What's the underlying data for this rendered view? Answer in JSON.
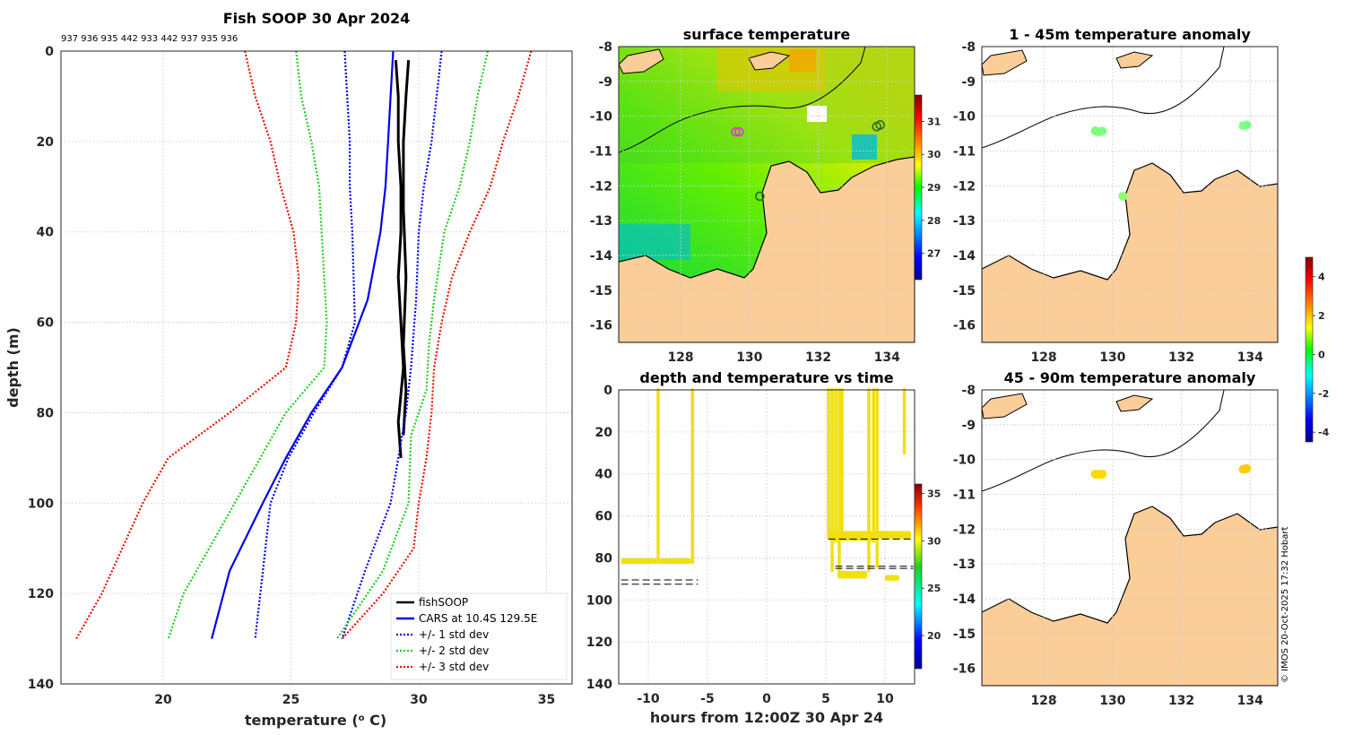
{
  "chart_data": [
    {
      "type": "line",
      "id": "profile",
      "title": "Fish SOOP 30 Apr 2024",
      "probe_ids": "937 936 935 442 933 442 937 935 936",
      "xlabel": "temperature (",
      "xlabel_sup": "o",
      "xlabel_end": " C)",
      "ylabel": "depth (m)",
      "xlim": [
        16,
        36
      ],
      "ylim": [
        0,
        140
      ],
      "xticks": [
        20,
        25,
        30,
        35
      ],
      "yticks": [
        0,
        20,
        40,
        60,
        80,
        100,
        120,
        140
      ],
      "series": [
        {
          "name": "fishSOOP",
          "color": "#000000",
          "style": "solid",
          "x": [
            29.1,
            29.2,
            29.2,
            29.3,
            29.3,
            29.2,
            29.3,
            29.4,
            29.3,
            29.2,
            29.3
          ],
          "y": [
            2,
            10,
            20,
            30,
            40,
            50,
            60,
            70,
            76,
            82,
            90
          ]
        },
        {
          "name": "fishSOOP_b",
          "color": "#000000",
          "style": "solid",
          "x": [
            29.6,
            29.5,
            29.4,
            29.4,
            29.5,
            29.4,
            29.5,
            29.4
          ],
          "y": [
            2,
            10,
            20,
            35,
            50,
            65,
            75,
            85
          ]
        },
        {
          "name": "CARS at 10.4S 129.5E",
          "color": "#0000ee",
          "style": "solid",
          "x": [
            29.0,
            28.9,
            28.8,
            28.7,
            28.5,
            28.0,
            27.0,
            25.8,
            24.8,
            23.9,
            22.6,
            21.9
          ],
          "y": [
            0,
            10,
            20,
            30,
            40,
            55,
            70,
            80,
            90,
            100,
            115,
            130
          ]
        },
        {
          "name": "+/- 1 std dev",
          "color": "#0000ee",
          "style": "dotted",
          "x": [
            27.1,
            27.2,
            27.3,
            27.3,
            27.4,
            27.5,
            27.0,
            25.9,
            24.9,
            24.2,
            23.6
          ],
          "y": [
            0,
            10,
            20,
            30,
            40,
            60,
            70,
            80,
            90,
            100,
            130
          ]
        },
        {
          "name": "+/- 1 std dev_hi",
          "color": "#0000ee",
          "style": "dotted",
          "x": [
            30.9,
            30.7,
            30.5,
            30.2,
            30.0,
            29.9,
            29.7,
            29.5,
            29.2,
            28.9,
            27.9,
            27.0
          ],
          "y": [
            0,
            10,
            20,
            30,
            40,
            55,
            70,
            80,
            90,
            100,
            115,
            130
          ]
        },
        {
          "name": "+/- 2 std dev",
          "color": "#22cc22",
          "style": "dotted",
          "x": [
            25.2,
            25.4,
            25.8,
            26.1,
            26.2,
            26.4,
            26.3,
            24.8,
            23.8,
            22.8,
            21.8,
            20.8,
            20.2
          ],
          "y": [
            0,
            10,
            20,
            30,
            40,
            60,
            70,
            80,
            90,
            100,
            110,
            120,
            130
          ]
        },
        {
          "name": "+/- 2 std dev_hi",
          "color": "#22cc22",
          "style": "dotted",
          "x": [
            32.7,
            32.3,
            32.0,
            31.6,
            31.0,
            30.6,
            30.4,
            30.3,
            29.7,
            29.6,
            28.6,
            26.8
          ],
          "y": [
            0,
            10,
            20,
            30,
            40,
            55,
            65,
            75,
            85,
            100,
            115,
            130
          ]
        },
        {
          "name": "+/- 3 std dev",
          "color": "#ee1100",
          "style": "dotted",
          "x": [
            23.2,
            23.6,
            24.2,
            24.6,
            25.1,
            25.3,
            25.2,
            24.8,
            22.6,
            20.2,
            19.2,
            17.6,
            16.6
          ],
          "y": [
            0,
            10,
            20,
            30,
            40,
            50,
            60,
            70,
            80,
            90,
            100,
            120,
            130
          ]
        },
        {
          "name": "+/- 3 std dev_hi",
          "color": "#ee1100",
          "style": "dotted",
          "x": [
            34.4,
            33.9,
            33.3,
            32.8,
            32.0,
            31.3,
            30.9,
            30.6,
            30.5,
            30.3,
            30.0,
            29.8,
            28.6,
            27.0
          ],
          "y": [
            0,
            10,
            20,
            30,
            40,
            50,
            60,
            70,
            80,
            90,
            100,
            110,
            120,
            130
          ]
        }
      ],
      "legend": [
        {
          "label": "fishSOOP",
          "color": "#000000",
          "style": "solid"
        },
        {
          "label": "CARS at 10.4S 129.5E",
          "color": "#0000ee",
          "style": "solid"
        },
        {
          "label": "+/- 1 std dev",
          "color": "#0000ee",
          "style": "dotted"
        },
        {
          "label": "+/- 2 std dev",
          "color": "#22cc22",
          "style": "dotted"
        },
        {
          "label": "+/- 3 std dev",
          "color": "#ee1100",
          "style": "dotted"
        }
      ]
    },
    {
      "type": "heatmap",
      "id": "surface_temp",
      "title": "surface temperature",
      "xlim": [
        126.2,
        134.8
      ],
      "ylim": [
        -16.5,
        -8
      ],
      "xticks": [
        128,
        130,
        132,
        134
      ],
      "yticks": [
        -8,
        -9,
        -10,
        -11,
        -12,
        -13,
        -14,
        -15,
        -16
      ],
      "colorbar": {
        "min": 26.2,
        "max": 31.8,
        "ticks": [
          27,
          28,
          29,
          30,
          31
        ]
      },
      "stations": [
        {
          "lon": 129.6,
          "lat": -10.45
        },
        {
          "lon": 129.7,
          "lat": -10.45
        },
        {
          "lon": 133.7,
          "lat": -10.3
        },
        {
          "lon": 133.8,
          "lat": -10.25
        },
        {
          "lon": 130.3,
          "lat": -12.3
        }
      ]
    },
    {
      "type": "scatter",
      "id": "anom_shallow",
      "title": "1 - 45m temperature anomaly",
      "xlim": [
        126.2,
        134.8
      ],
      "ylim": [
        -16.5,
        -8
      ],
      "xticks": [
        128,
        130,
        132,
        134
      ],
      "yticks": [
        -8,
        -9,
        -10,
        -11,
        -12,
        -13,
        -14,
        -15,
        -16
      ],
      "points": [
        {
          "lon": 129.5,
          "lat": -10.42,
          "value": 0.2
        },
        {
          "lon": 129.6,
          "lat": -10.45,
          "value": 0.3
        },
        {
          "lon": 129.7,
          "lat": -10.43,
          "value": 0.2
        },
        {
          "lon": 133.8,
          "lat": -10.27,
          "value": 0.3
        },
        {
          "lon": 133.9,
          "lat": -10.25,
          "value": 0.2
        },
        {
          "lon": 130.3,
          "lat": -12.3,
          "value": 0.4
        }
      ]
    },
    {
      "type": "scatter",
      "id": "anom_deep",
      "title": "45 - 90m temperature anomaly",
      "xlim": [
        126.2,
        134.8
      ],
      "ylim": [
        -16.5,
        -8
      ],
      "xticks": [
        128,
        130,
        132,
        134
      ],
      "yticks": [
        -8,
        -9,
        -10,
        -11,
        -12,
        -13,
        -14,
        -15,
        -16
      ],
      "colorbar": {
        "min": -4.5,
        "max": 5,
        "ticks": [
          -4,
          -2,
          0,
          2,
          4
        ]
      },
      "points": [
        {
          "lon": 129.5,
          "lat": -10.42,
          "value": 1.8
        },
        {
          "lon": 129.6,
          "lat": -10.43,
          "value": 1.8
        },
        {
          "lon": 129.7,
          "lat": -10.42,
          "value": 1.8
        },
        {
          "lon": 133.8,
          "lat": -10.28,
          "value": 1.9
        },
        {
          "lon": 133.9,
          "lat": -10.26,
          "value": 1.9
        }
      ]
    },
    {
      "type": "scatter",
      "id": "depth_time",
      "title": "depth and temperature vs time",
      "xlabel": "hours from 12:00Z 30 Apr 24",
      "xlim": [
        -12.5,
        12.5
      ],
      "ylim": [
        0,
        140
      ],
      "xticks": [
        -10,
        -5,
        0,
        5,
        10
      ],
      "yticks": [
        0,
        20,
        40,
        60,
        80,
        100,
        120,
        140
      ],
      "colorbar": {
        "min": 16.5,
        "max": 36,
        "ticks": [
          20,
          25,
          30,
          35
        ]
      },
      "casts": [
        {
          "t0": -12.3,
          "t1": -9.3,
          "top": 81,
          "bottom": 82
        },
        {
          "t0": -9.3,
          "t1": -9.1,
          "top": 0,
          "bottom": 82
        },
        {
          "t0": -9.1,
          "t1": -6.4,
          "top": 81,
          "bottom": 82
        },
        {
          "t0": -6.4,
          "t1": -6.2,
          "top": 0,
          "bottom": 82
        },
        {
          "t0": 5.1,
          "t1": 5.3,
          "top": 0,
          "bottom": 70
        },
        {
          "t0": 5.4,
          "t1": 5.6,
          "top": 0,
          "bottom": 86
        },
        {
          "t0": 5.7,
          "t1": 5.9,
          "top": 0,
          "bottom": 72
        },
        {
          "t0": 6.0,
          "t1": 6.2,
          "top": 0,
          "bottom": 88
        },
        {
          "t0": 6.2,
          "t1": 6.5,
          "top": 0,
          "bottom": 70
        },
        {
          "t0": 5.3,
          "t1": 9.0,
          "top": 68,
          "bottom": 71
        },
        {
          "t0": 8.5,
          "t1": 8.7,
          "top": 0,
          "bottom": 86
        },
        {
          "t0": 8.9,
          "t1": 9.1,
          "top": 0,
          "bottom": 72
        },
        {
          "t0": 9.2,
          "t1": 9.4,
          "top": 0,
          "bottom": 84
        },
        {
          "t0": 9.0,
          "t1": 12.2,
          "top": 68,
          "bottom": 70
        },
        {
          "t0": 11.5,
          "t1": 11.7,
          "top": 0,
          "bottom": 30
        },
        {
          "t0": 6.0,
          "t1": 8.5,
          "top": 87,
          "bottom": 89
        },
        {
          "t0": 10.0,
          "t1": 11.2,
          "top": 89,
          "bottom": 90
        }
      ],
      "cast_color": "#f0e010",
      "bottom_lines": [
        {
          "t0": -12.3,
          "t1": -5.8,
          "depth": 90.5
        },
        {
          "t0": -12.3,
          "t1": -5.8,
          "depth": 92.5
        },
        {
          "t0": 5.2,
          "t1": 12.4,
          "depth": 71
        },
        {
          "t0": 5.8,
          "t1": 12.4,
          "depth": 84
        },
        {
          "t0": 5.8,
          "t1": 12.4,
          "depth": 85
        }
      ]
    }
  ],
  "watermark": "© IMOS 20-Oct-2025 17:32 Hobart"
}
